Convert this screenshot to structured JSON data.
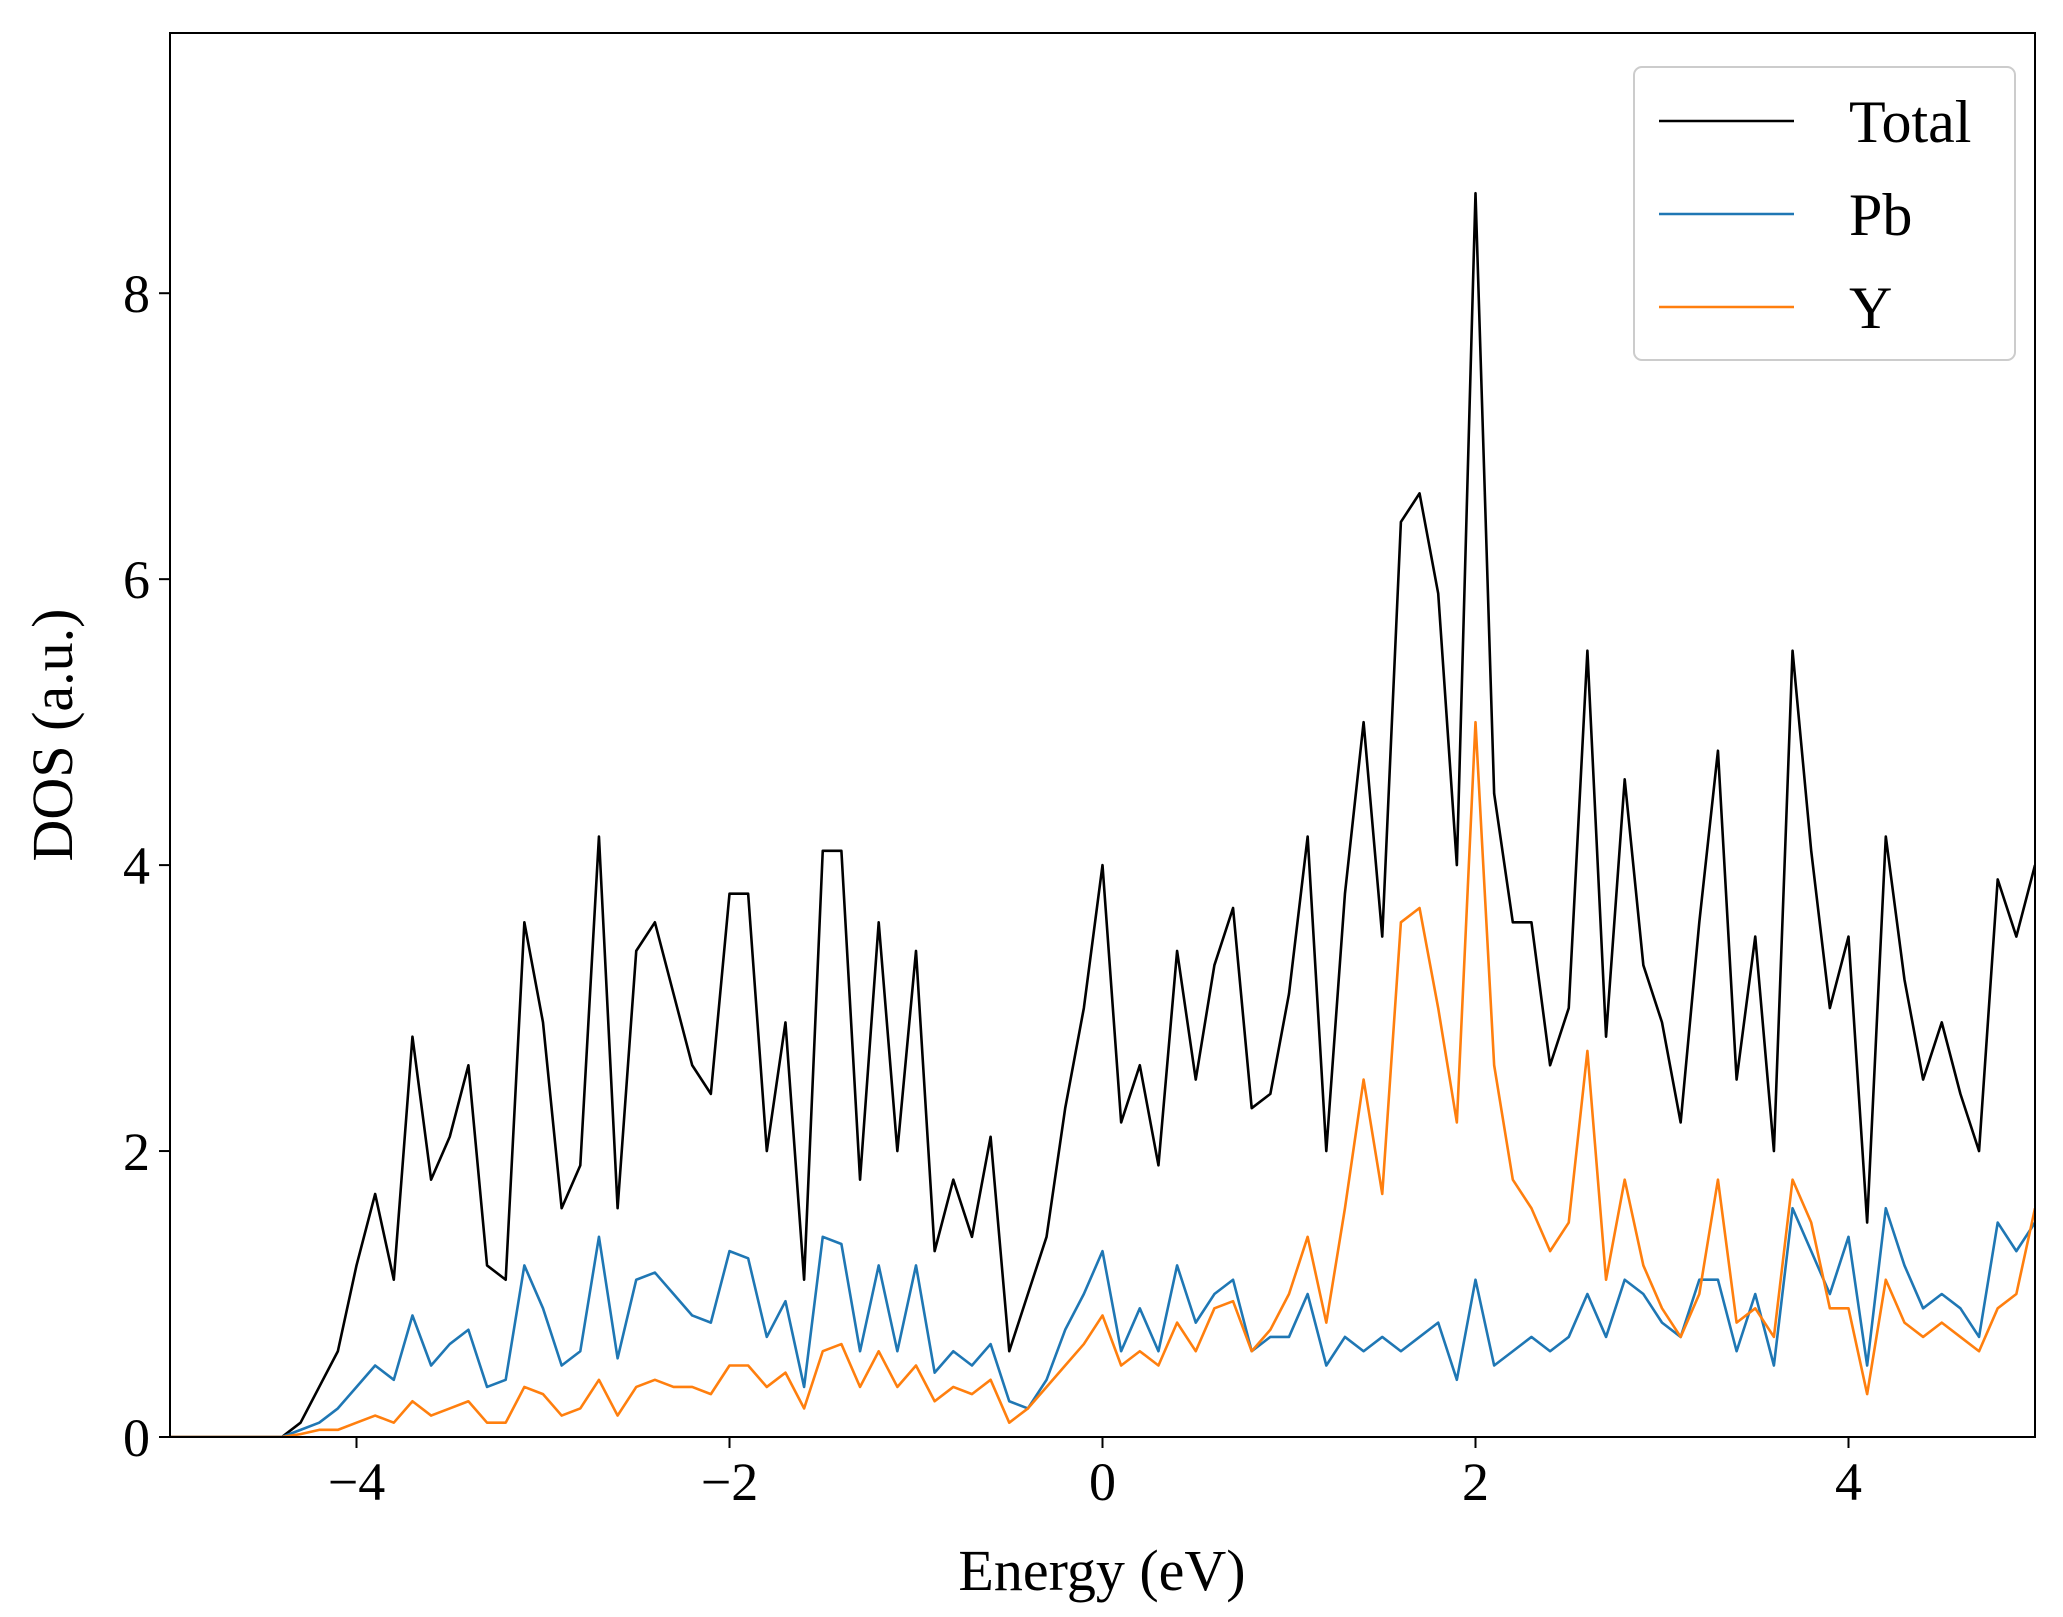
{
  "chart_data": {
    "type": "line",
    "x_label": "Energy (eV)",
    "y_label": "DOS (a.u.)",
    "x": [
      -5,
      -4.9,
      -4.8,
      -4.7,
      -4.6,
      -4.5,
      -4.4,
      -4.3,
      -4.2,
      -4.1,
      -4,
      -3.9,
      -3.8,
      -3.7,
      -3.6,
      -3.5,
      -3.4,
      -3.3,
      -3.2,
      -3.1,
      -3,
      -2.9,
      -2.8,
      -2.7,
      -2.6,
      -2.5,
      -2.4,
      -2.3,
      -2.2,
      -2.1,
      -2,
      -1.9,
      -1.8,
      -1.7,
      -1.6,
      -1.5,
      -1.4,
      -1.3,
      -1.2,
      -1.1,
      -1,
      -0.9,
      -0.8,
      -0.7,
      -0.6,
      -0.5,
      -0.4,
      -0.3,
      -0.2,
      -0.1,
      0,
      0.1,
      0.2,
      0.3,
      0.4,
      0.5,
      0.6,
      0.7,
      0.8,
      0.9,
      1,
      1.1,
      1.2,
      1.3,
      1.4,
      1.5,
      1.6,
      1.7,
      1.8,
      1.9,
      2,
      2.1,
      2.2,
      2.3,
      2.4,
      2.5,
      2.6,
      2.7,
      2.8,
      2.9,
      3,
      3.1,
      3.2,
      3.3,
      3.4,
      3.5,
      3.6,
      3.7,
      3.8,
      3.9,
      4,
      4.1,
      4.2,
      4.3,
      4.4,
      4.5,
      4.6,
      4.7,
      4.8,
      4.9,
      5
    ],
    "series": [
      {
        "name": "Total",
        "color": "#000000",
        "values": [
          0,
          0,
          0,
          0,
          0,
          0,
          0,
          0.1,
          0.35,
          0.6,
          1.2,
          1.7,
          1.1,
          2.8,
          1.8,
          2.1,
          2.6,
          1.2,
          1.1,
          3.6,
          2.9,
          1.6,
          1.9,
          4.2,
          1.6,
          3.4,
          3.6,
          3.1,
          2.6,
          2.4,
          3.8,
          3.8,
          2.0,
          2.9,
          1.1,
          4.1,
          4.1,
          1.8,
          3.6,
          2.0,
          3.4,
          1.3,
          1.8,
          1.4,
          2.1,
          0.6,
          1.0,
          1.4,
          2.3,
          3.0,
          4.0,
          2.2,
          2.6,
          1.9,
          3.4,
          2.5,
          3.3,
          3.7,
          2.3,
          2.4,
          3.1,
          4.2,
          2.0,
          3.8,
          5.0,
          3.5,
          6.4,
          6.6,
          5.9,
          4.0,
          8.7,
          4.5,
          3.6,
          3.6,
          2.6,
          3.0,
          5.5,
          2.8,
          4.6,
          3.3,
          2.9,
          2.2,
          3.6,
          4.8,
          2.5,
          3.5,
          2.0,
          5.5,
          4.1,
          3.0,
          3.5,
          1.5,
          4.2,
          3.2,
          2.5,
          2.9,
          2.4,
          2.0,
          3.9,
          3.5,
          4.0
        ]
      },
      {
        "name": "Pb",
        "color": "#1f77b4",
        "values": [
          0,
          0,
          0,
          0,
          0,
          0,
          0,
          0.05,
          0.1,
          0.2,
          0.35,
          0.5,
          0.4,
          0.85,
          0.5,
          0.65,
          0.75,
          0.35,
          0.4,
          1.2,
          0.9,
          0.5,
          0.6,
          1.4,
          0.55,
          1.1,
          1.15,
          1.0,
          0.85,
          0.8,
          1.3,
          1.25,
          0.7,
          0.95,
          0.35,
          1.4,
          1.35,
          0.6,
          1.2,
          0.6,
          1.2,
          0.45,
          0.6,
          0.5,
          0.65,
          0.25,
          0.2,
          0.4,
          0.75,
          1.0,
          1.3,
          0.6,
          0.9,
          0.6,
          1.2,
          0.8,
          1.0,
          1.1,
          0.6,
          0.7,
          0.7,
          1.0,
          0.5,
          0.7,
          0.6,
          0.7,
          0.6,
          0.7,
          0.8,
          0.4,
          1.1,
          0.5,
          0.6,
          0.7,
          0.6,
          0.7,
          1.0,
          0.7,
          1.1,
          1.0,
          0.8,
          0.7,
          1.1,
          1.1,
          0.6,
          1.0,
          0.5,
          1.6,
          1.3,
          1.0,
          1.4,
          0.5,
          1.6,
          1.2,
          0.9,
          1.0,
          0.9,
          0.7,
          1.5,
          1.3,
          1.5
        ]
      },
      {
        "name": "Y",
        "color": "#ff7f0e",
        "values": [
          0,
          0,
          0,
          0,
          0,
          0,
          0,
          0.02,
          0.05,
          0.05,
          0.1,
          0.15,
          0.1,
          0.25,
          0.15,
          0.2,
          0.25,
          0.1,
          0.1,
          0.35,
          0.3,
          0.15,
          0.2,
          0.4,
          0.15,
          0.35,
          0.4,
          0.35,
          0.35,
          0.3,
          0.5,
          0.5,
          0.35,
          0.45,
          0.2,
          0.6,
          0.65,
          0.35,
          0.6,
          0.35,
          0.5,
          0.25,
          0.35,
          0.3,
          0.4,
          0.1,
          0.2,
          0.35,
          0.5,
          0.65,
          0.85,
          0.5,
          0.6,
          0.5,
          0.8,
          0.6,
          0.9,
          0.95,
          0.6,
          0.75,
          1.0,
          1.4,
          0.8,
          1.6,
          2.5,
          1.7,
          3.6,
          3.7,
          3.0,
          2.2,
          5.0,
          2.6,
          1.8,
          1.6,
          1.3,
          1.5,
          2.7,
          1.1,
          1.8,
          1.2,
          0.9,
          0.7,
          1.0,
          1.8,
          0.8,
          0.9,
          0.7,
          1.8,
          1.5,
          0.9,
          0.9,
          0.3,
          1.1,
          0.8,
          0.7,
          0.8,
          0.7,
          0.6,
          0.9,
          1.0,
          1.6
        ]
      }
    ],
    "xlim": [
      -5,
      5
    ],
    "ylim": [
      0,
      9.82
    ],
    "xticks": [
      {
        "value": -4,
        "label": "−4"
      },
      {
        "value": -2,
        "label": "−2"
      },
      0,
      2,
      4
    ],
    "yticks": [
      0,
      2,
      4,
      6,
      8
    ],
    "legend": "upper right"
  }
}
